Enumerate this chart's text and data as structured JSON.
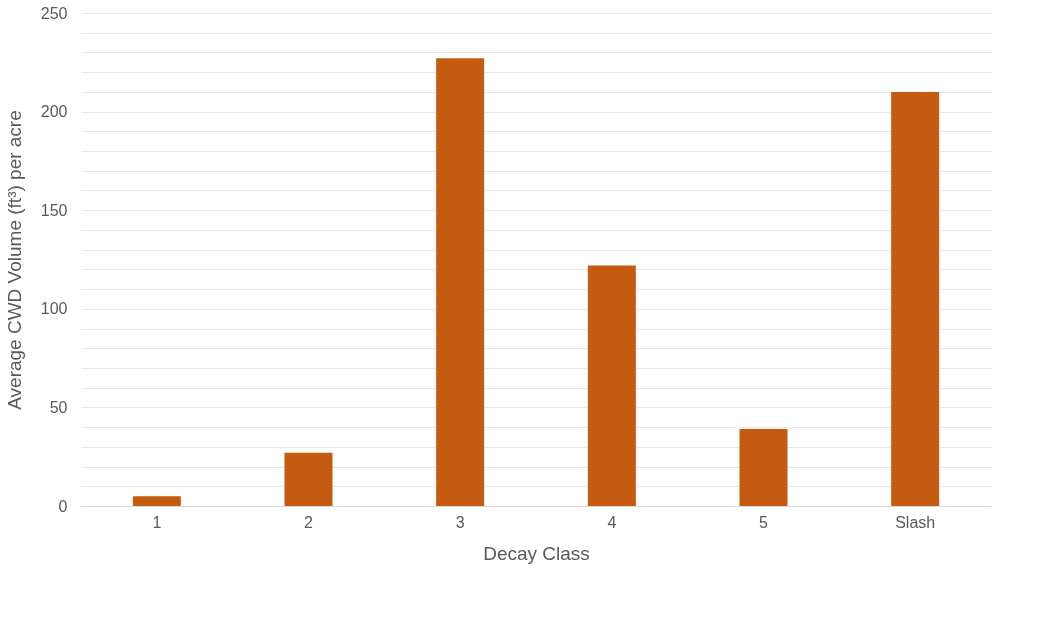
{
  "chart_data": {
    "type": "bar",
    "xlabel": "Decay Class",
    "ylabel": "Average CWD Volume (ft³) per acre",
    "categories": [
      "1",
      "2",
      "3",
      "4",
      "5",
      "Slash"
    ],
    "values": [
      5,
      27,
      227,
      122,
      39,
      210
    ],
    "color": "#c55a11",
    "ylim": [
      0,
      250
    ],
    "yticks": [
      0,
      {
        "value": 10,
        "label": null
      },
      {
        "value": 20,
        "label": null
      },
      {
        "value": 30,
        "label": null
      },
      {
        "value": 40,
        "label": null
      },
      50,
      {
        "value": 60,
        "label": null
      },
      {
        "value": 70,
        "label": null
      },
      {
        "value": 80,
        "label": null
      },
      {
        "value": 90,
        "label": null
      },
      100,
      {
        "value": 110,
        "label": null
      },
      {
        "value": 120,
        "label": null
      },
      {
        "value": 130,
        "label": null
      },
      {
        "value": 140,
        "label": null
      },
      150,
      {
        "value": 160,
        "label": null
      },
      {
        "value": 170,
        "label": null
      },
      {
        "value": 180,
        "label": null
      },
      {
        "value": 190,
        "label": null
      },
      200,
      {
        "value": 210,
        "label": null
      },
      {
        "value": 220,
        "label": null
      },
      {
        "value": 230,
        "label": null
      },
      {
        "value": 240,
        "label": null
      },
      250
    ],
    "grid": "y"
  }
}
